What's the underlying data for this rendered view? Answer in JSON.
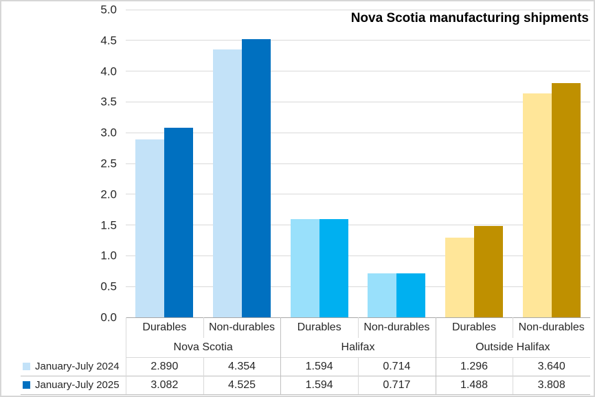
{
  "figure": {
    "title": "Nova Scotia manufacturing shipments"
  },
  "chart_data": {
    "type": "bar",
    "title": "Nova Scotia manufacturing shipments",
    "xlabel": "",
    "ylabel": "",
    "ylim": [
      0,
      5
    ],
    "ytick_step": 0.5,
    "ytick_labels": [
      "0.0",
      "0.5",
      "1.0",
      "1.5",
      "2.0",
      "2.5",
      "3.0",
      "3.5",
      "4.0",
      "4.5",
      "5.0"
    ],
    "grid": true,
    "legend_position": "bottom-table",
    "groups": [
      {
        "label": "Nova Scotia",
        "categories": [
          "Durables",
          "Non-durables"
        ]
      },
      {
        "label": "Halifax",
        "categories": [
          "Durables",
          "Non-durables"
        ]
      },
      {
        "label": "Outside Halifax",
        "categories": [
          "Durables",
          "Non-durables"
        ]
      }
    ],
    "categories": [
      "Durables",
      "Non-durables",
      "Durables",
      "Non-durables",
      "Durables",
      "Non-durables"
    ],
    "series": [
      {
        "name": "January-July 2024",
        "values": [
          2.89,
          4.354,
          1.594,
          0.714,
          1.296,
          3.64
        ],
        "value_labels": [
          "2.890",
          "4.354",
          "1.594",
          "0.714",
          "1.296",
          "3.640"
        ],
        "bar_colors": [
          "#C3E2F8",
          "#C3E2F8",
          "#99E0FB",
          "#99E0FB",
          "#FFE699",
          "#FFE699"
        ],
        "legend_color": "#C3E2F8"
      },
      {
        "name": "January-July 2025",
        "values": [
          3.082,
          4.525,
          1.594,
          0.717,
          1.488,
          3.808
        ],
        "value_labels": [
          "3.082",
          "4.525",
          "1.594",
          "0.717",
          "1.488",
          "3.808"
        ],
        "bar_colors": [
          "#0070C0",
          "#0070C0",
          "#00B0F0",
          "#00B0F0",
          "#BF9000",
          "#BF9000"
        ],
        "legend_color": "#0070C0"
      }
    ],
    "colors": {
      "gridline": "#D9D9D9",
      "axis_line": "#A6A6A6",
      "table_line": "#BFBFBF",
      "table_line_light": "#D9D9D9",
      "text": "#262626",
      "title_text": "#000000"
    }
  }
}
